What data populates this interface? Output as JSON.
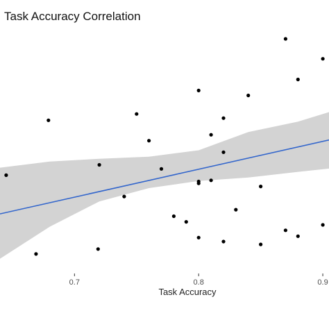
{
  "chart_data": {
    "type": "scatter",
    "title": "Task Accuracy Correlation",
    "xlabel": "Task Accuracy",
    "ylabel": "",
    "xlim": [
      0.64,
      0.905
    ],
    "ylim": [
      0,
      1
    ],
    "x_ticks": [
      0.7,
      0.8,
      0.9
    ],
    "x_tick_labels": [
      "0.7",
      "0.8",
      "0.9"
    ],
    "grid": false,
    "legend": "none",
    "colors": {
      "points": "#000000",
      "fit_line": "#3366cc",
      "confidence_band": "#d3d3d3"
    },
    "points": [
      {
        "x": 0.645,
        "y": 0.419
      },
      {
        "x": 0.669,
        "y": 0.083
      },
      {
        "x": 0.679,
        "y": 0.653
      },
      {
        "x": 0.719,
        "y": 0.104
      },
      {
        "x": 0.72,
        "y": 0.463
      },
      {
        "x": 0.74,
        "y": 0.328
      },
      {
        "x": 0.75,
        "y": 0.68
      },
      {
        "x": 0.76,
        "y": 0.566
      },
      {
        "x": 0.77,
        "y": 0.446
      },
      {
        "x": 0.78,
        "y": 0.244
      },
      {
        "x": 0.79,
        "y": 0.22
      },
      {
        "x": 0.8,
        "y": 0.392
      },
      {
        "x": 0.8,
        "y": 0.384
      },
      {
        "x": 0.8,
        "y": 0.153
      },
      {
        "x": 0.8,
        "y": 0.78
      },
      {
        "x": 0.81,
        "y": 0.591
      },
      {
        "x": 0.81,
        "y": 0.397
      },
      {
        "x": 0.82,
        "y": 0.662
      },
      {
        "x": 0.82,
        "y": 0.517
      },
      {
        "x": 0.82,
        "y": 0.136
      },
      {
        "x": 0.83,
        "y": 0.272
      },
      {
        "x": 0.84,
        "y": 0.759
      },
      {
        "x": 0.85,
        "y": 0.371
      },
      {
        "x": 0.85,
        "y": 0.124
      },
      {
        "x": 0.87,
        "y": 1.0
      },
      {
        "x": 0.87,
        "y": 0.184
      },
      {
        "x": 0.88,
        "y": 0.827
      },
      {
        "x": 0.88,
        "y": 0.159
      },
      {
        "x": 0.9,
        "y": 0.915
      },
      {
        "x": 0.9,
        "y": 0.207
      }
    ],
    "fit_line": {
      "x": [
        0.64,
        0.905
      ],
      "y": [
        0.254,
        0.569
      ]
    },
    "confidence_band": {
      "x": [
        0.64,
        0.68,
        0.72,
        0.76,
        0.8,
        0.84,
        0.88,
        0.905
      ],
      "lower": [
        0.063,
        0.199,
        0.307,
        0.364,
        0.394,
        0.409,
        0.433,
        0.447
      ],
      "upper": [
        0.451,
        0.477,
        0.489,
        0.498,
        0.525,
        0.603,
        0.647,
        0.688
      ]
    }
  }
}
